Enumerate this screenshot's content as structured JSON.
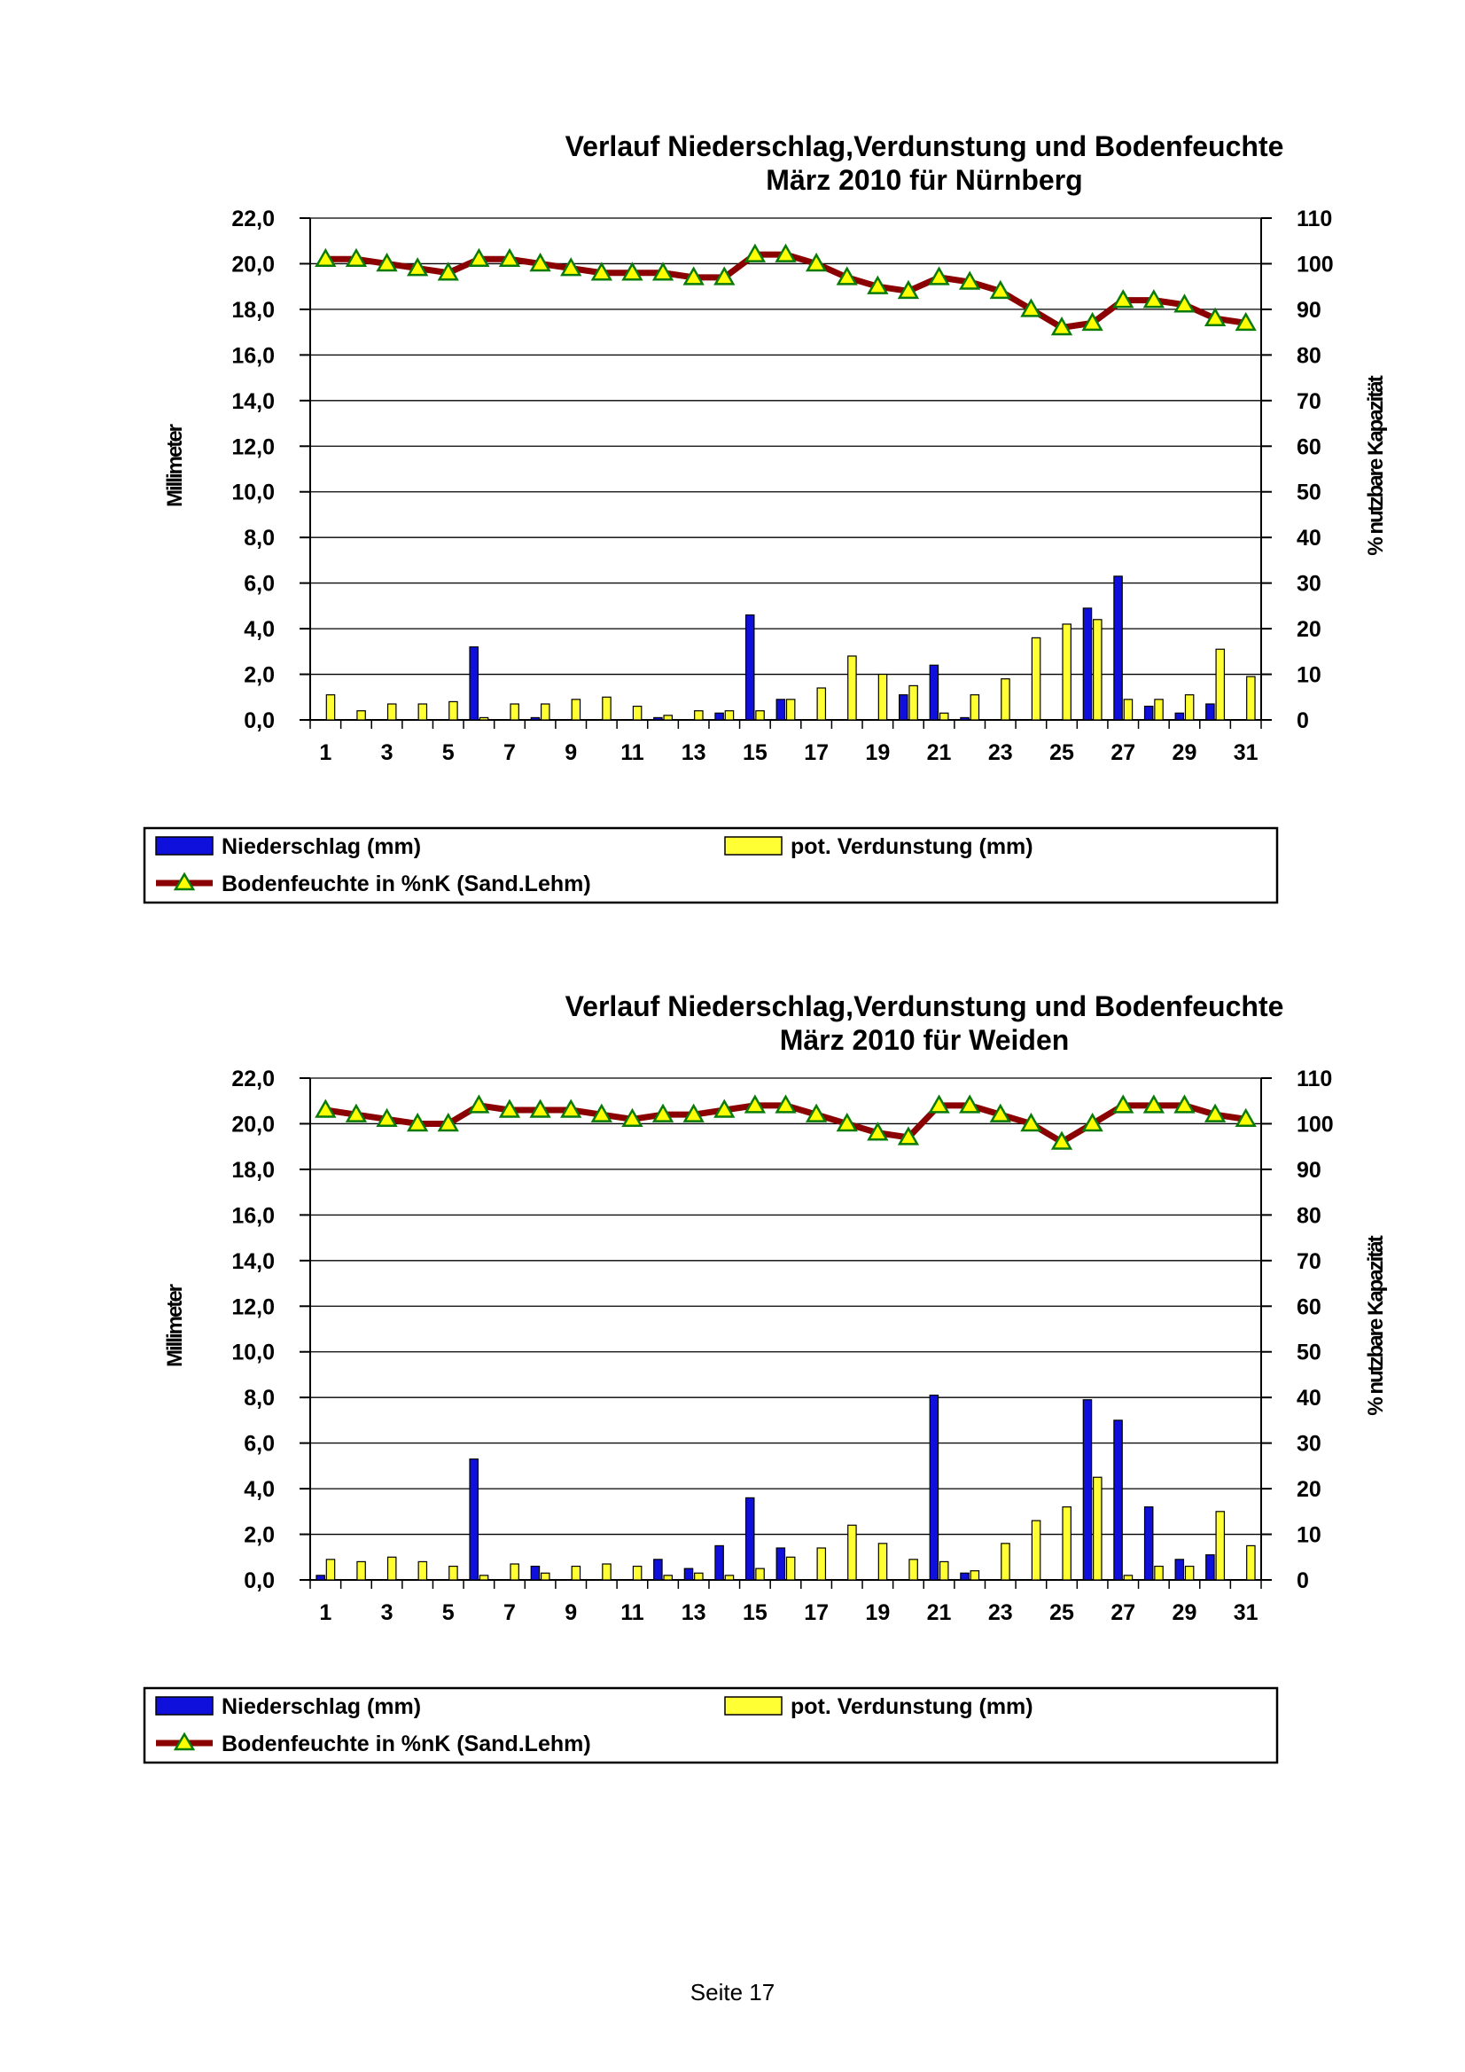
{
  "page": {
    "footer": "Seite 17"
  },
  "chart_data": [
    {
      "type": "bar",
      "title": "Verlauf Niederschlag,Verdunstung und Bodenfeuchte",
      "subtitle": "März 2010 für Nürnberg",
      "ylabel": "Millimeter",
      "y2label": "% nutzbare Kapazität",
      "ylim": [
        0,
        22
      ],
      "y2lim": [
        0,
        110
      ],
      "yticks": [
        "0,0",
        "2,0",
        "4,0",
        "6,0",
        "8,0",
        "10,0",
        "12,0",
        "14,0",
        "16,0",
        "18,0",
        "20,0",
        "22,0"
      ],
      "y2ticks": [
        "0",
        "10",
        "20",
        "30",
        "40",
        "50",
        "60",
        "70",
        "80",
        "90",
        "100",
        "110"
      ],
      "xticks": [
        "1",
        "3",
        "5",
        "7",
        "9",
        "11",
        "13",
        "15",
        "17",
        "19",
        "21",
        "23",
        "25",
        "27",
        "29",
        "31"
      ],
      "categories": [
        1,
        2,
        3,
        4,
        5,
        6,
        7,
        8,
        9,
        10,
        11,
        12,
        13,
        14,
        15,
        16,
        17,
        18,
        19,
        20,
        21,
        22,
        23,
        24,
        25,
        26,
        27,
        28,
        29,
        30,
        31
      ],
      "grid": true,
      "series": [
        {
          "name": "Niederschlag (mm)",
          "kind": "bar",
          "color": "#1010dd",
          "values": [
            0,
            0,
            0,
            0,
            0,
            3.2,
            0,
            0.1,
            0,
            0,
            0,
            0.1,
            0,
            0.3,
            4.6,
            0.9,
            0,
            0,
            0,
            1.1,
            2.4,
            0.1,
            0,
            0,
            0,
            4.9,
            6.3,
            0.6,
            0.3,
            0.7,
            0
          ]
        },
        {
          "name": "pot. Verdunstung (mm)",
          "kind": "bar",
          "color": "#ffff33",
          "values": [
            1.1,
            0.4,
            0.7,
            0.7,
            0.8,
            0.1,
            0.7,
            0.7,
            0.9,
            1.0,
            0.6,
            0.2,
            0.4,
            0.4,
            0.4,
            0.9,
            1.4,
            2.8,
            2.0,
            1.5,
            0.3,
            1.1,
            1.8,
            3.6,
            4.2,
            4.4,
            0.9,
            0.9,
            1.1,
            3.1,
            1.9
          ]
        },
        {
          "name": "Bodenfeuchte in %nK (Sand.Lehm)",
          "kind": "line",
          "axis": "right",
          "color": "#8b0000",
          "marker_color": "#ffff00",
          "values": [
            101,
            101,
            100,
            99,
            98,
            101,
            101,
            100,
            99,
            98,
            98,
            98,
            97,
            97,
            102,
            102,
            100,
            97,
            95,
            94,
            97,
            96,
            94,
            90,
            86,
            87,
            92,
            92,
            91,
            88,
            87
          ]
        }
      ]
    },
    {
      "type": "bar",
      "title": "Verlauf Niederschlag,Verdunstung und Bodenfeuchte",
      "subtitle": "März 2010 für Weiden",
      "ylabel": "Millimeter",
      "y2label": "% nutzbare Kapazität",
      "ylim": [
        0,
        22
      ],
      "y2lim": [
        0,
        110
      ],
      "yticks": [
        "0,0",
        "2,0",
        "4,0",
        "6,0",
        "8,0",
        "10,0",
        "12,0",
        "14,0",
        "16,0",
        "18,0",
        "20,0",
        "22,0"
      ],
      "y2ticks": [
        "0",
        "10",
        "20",
        "30",
        "40",
        "50",
        "60",
        "70",
        "80",
        "90",
        "100",
        "110"
      ],
      "xticks": [
        "1",
        "3",
        "5",
        "7",
        "9",
        "11",
        "13",
        "15",
        "17",
        "19",
        "21",
        "23",
        "25",
        "27",
        "29",
        "31"
      ],
      "categories": [
        1,
        2,
        3,
        4,
        5,
        6,
        7,
        8,
        9,
        10,
        11,
        12,
        13,
        14,
        15,
        16,
        17,
        18,
        19,
        20,
        21,
        22,
        23,
        24,
        25,
        26,
        27,
        28,
        29,
        30,
        31
      ],
      "grid": true,
      "series": [
        {
          "name": "Niederschlag (mm)",
          "kind": "bar",
          "color": "#1010dd",
          "values": [
            0.2,
            0,
            0,
            0,
            0,
            5.3,
            0,
            0.6,
            0,
            0,
            0,
            0.9,
            0.5,
            1.5,
            3.6,
            1.4,
            0,
            0,
            0,
            0,
            8.1,
            0.3,
            0,
            0,
            0,
            7.9,
            7.0,
            3.2,
            0.9,
            1.1,
            0
          ]
        },
        {
          "name": "pot. Verdunstung (mm)",
          "kind": "bar",
          "color": "#ffff33",
          "values": [
            0.9,
            0.8,
            1.0,
            0.8,
            0.6,
            0.2,
            0.7,
            0.3,
            0.6,
            0.7,
            0.6,
            0.2,
            0.3,
            0.2,
            0.5,
            1.0,
            1.4,
            2.4,
            1.6,
            0.9,
            0.8,
            0.4,
            1.6,
            2.6,
            3.2,
            4.5,
            0.2,
            0.6,
            0.6,
            3.0,
            1.5
          ]
        },
        {
          "name": "Bodenfeuchte in %nK (Sand.Lehm)",
          "kind": "line",
          "axis": "right",
          "color": "#8b0000",
          "marker_color": "#ffff00",
          "values": [
            103,
            102,
            101,
            100,
            100,
            104,
            103,
            103,
            103,
            102,
            101,
            102,
            102,
            103,
            104,
            104,
            102,
            100,
            98,
            97,
            104,
            104,
            102,
            100,
            96,
            100,
            104,
            104,
            104,
            102,
            101
          ]
        }
      ]
    }
  ]
}
